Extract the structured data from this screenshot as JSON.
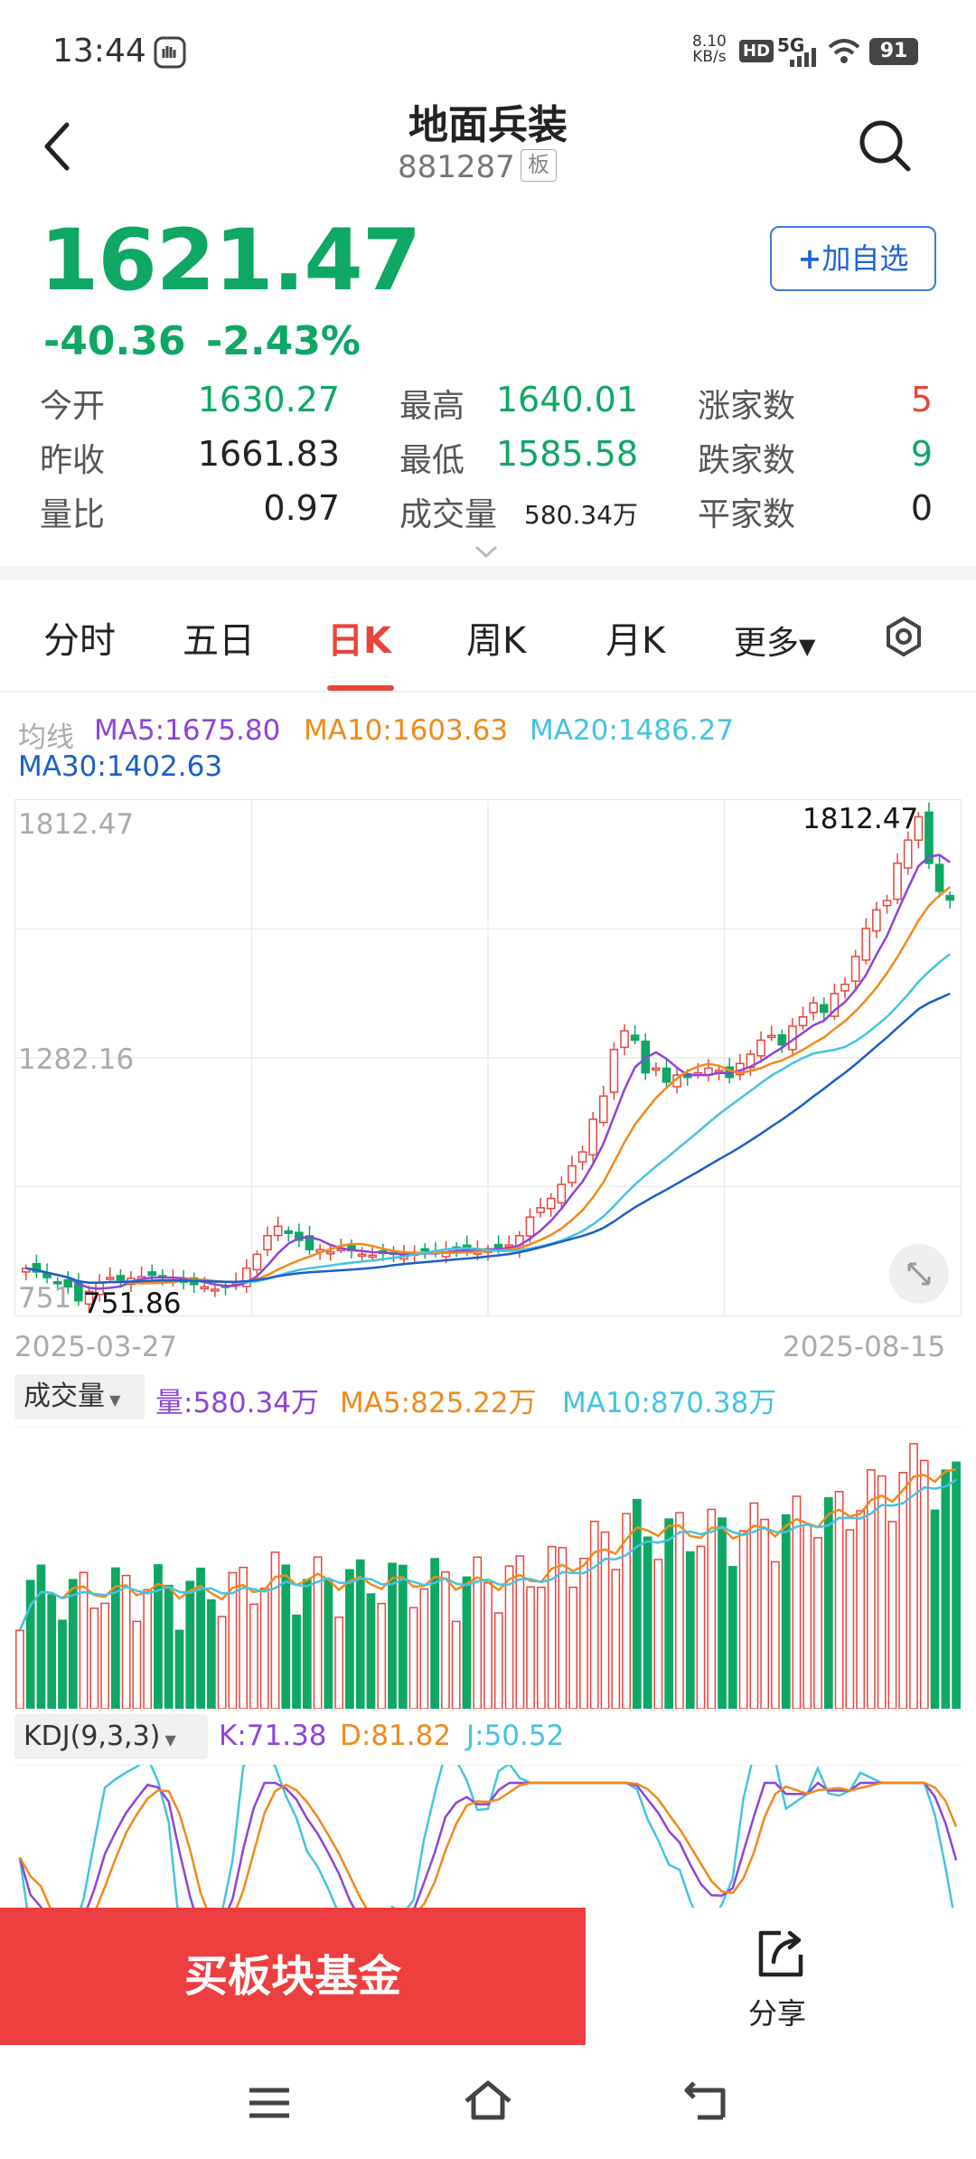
{
  "status_bar": {
    "time": "13:44",
    "net_speed": "8.10",
    "net_unit": "KB/s",
    "hd": "HD",
    "signal": "5G",
    "battery": "91"
  },
  "header": {
    "title": "地面兵装",
    "code": "881287",
    "tag": "板",
    "add_label": "加自选"
  },
  "quote": {
    "price": "1621.47",
    "change": "-40.36",
    "change_pct": "-2.43%",
    "open_label": "今开",
    "open": "1630.27",
    "prev_label": "昨收",
    "prev": "1661.83",
    "ratio_label": "量比",
    "ratio": "0.97",
    "high_label": "最高",
    "high": "1640.01",
    "low_label": "最低",
    "low": "1585.58",
    "vol_label": "成交量",
    "vol": "580.34万",
    "up_label": "涨家数",
    "up": "5",
    "down_label": "跌家数",
    "down": "9",
    "flat_label": "平家数",
    "flat": "0"
  },
  "tabs": [
    "分时",
    "五日",
    "日K",
    "周K",
    "月K",
    "更多"
  ],
  "active_tab": "日K",
  "ma": {
    "label": "均线",
    "ma5": "MA5:1675.80",
    "ma10": "MA10:1603.63",
    "ma20": "MA20:1486.27",
    "ma30": "MA30:1402.63"
  },
  "price_axis": {
    "top": "1812.47",
    "mid": "1282.16",
    "bottom": "751",
    "max_marker": "1812.47",
    "min_marker": "751.86",
    "date_start": "2025-03-27",
    "date_end": "2025-08-15"
  },
  "volume_header": {
    "tag": "成交量",
    "vol": "量:580.34万",
    "ma5": "MA5:825.22万",
    "ma10": "MA10:870.38万"
  },
  "kdj_header": {
    "tag": "KDJ(9,3,3)",
    "k": "K:71.38",
    "d": "D:81.82",
    "j": "J:50.52"
  },
  "bottom": {
    "buy_label": "买板块基金",
    "share_label": "分享"
  },
  "colors": {
    "up": "#e8453c",
    "down": "#0ea764",
    "ma5": "#8e44d8",
    "ma10": "#f08a1c",
    "ma20": "#45c3e0",
    "ma30": "#1a5fc8"
  },
  "chart_data": {
    "type": "candlestick",
    "x_range": [
      "2025-03-27",
      "2025-08-15"
    ],
    "y_range": [
      751.86,
      1812.47
    ],
    "y_ticks": [
      1812.47,
      1282.16,
      751
    ],
    "close_approx": [
      830,
      822,
      810,
      800,
      790,
      760,
      780,
      800,
      810,
      805,
      808,
      812,
      815,
      810,
      805,
      800,
      795,
      790,
      785,
      790,
      800,
      830,
      860,
      900,
      920,
      905,
      890,
      870,
      870,
      865,
      872,
      868,
      860,
      858,
      862,
      860,
      858,
      862,
      868,
      864,
      870,
      872,
      868,
      870,
      872,
      875,
      880,
      900,
      940,
      960,
      980,
      1010,
      1050,
      1080,
      1150,
      1200,
      1300,
      1340,
      1320,
      1250,
      1260,
      1230,
      1245,
      1240,
      1250,
      1260,
      1255,
      1240,
      1270,
      1290,
      1320,
      1330,
      1310,
      1350,
      1370,
      1400,
      1380,
      1420,
      1440,
      1500,
      1560,
      1600,
      1620,
      1700,
      1750,
      1800,
      1700,
      1640,
      1621
    ]
  }
}
